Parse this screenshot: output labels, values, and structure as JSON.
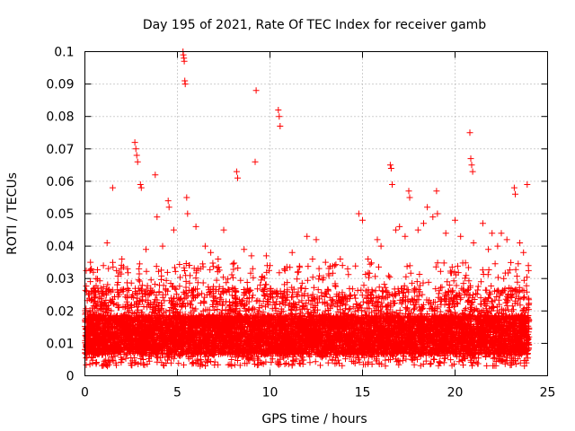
{
  "chart_data": {
    "type": "scatter",
    "title": "Day 195 of 2021, Rate Of TEC Index for receiver gamb",
    "xlabel": "GPS time / hours",
    "ylabel": "ROTI / TECUs",
    "xlim": [
      0,
      25
    ],
    "ylim": [
      0,
      0.1
    ],
    "x_ticks": [
      "0",
      "5",
      "10",
      "15",
      "20",
      "25"
    ],
    "y_ticks": [
      "0",
      "0.01",
      "0.02",
      "0.03",
      "0.04",
      "0.05",
      "0.06",
      "0.07",
      "0.08",
      "0.09",
      "0.1"
    ],
    "grid": true,
    "marker": "+",
    "color": "#ff0000",
    "series": [
      {
        "name": "ROTI",
        "x": [
          5.3,
          5.32,
          5.35,
          5.37,
          5.4,
          5.42,
          9.25,
          10.45,
          10.5,
          10.55,
          2.7,
          2.75,
          2.8,
          2.85,
          20.8,
          20.85,
          20.9,
          20.95,
          3.0,
          3.05,
          8.2,
          8.25,
          9.2,
          4.5,
          4.55,
          5.5,
          5.55,
          16.5,
          16.55,
          16.6,
          17.5,
          17.55,
          19.0,
          19.05,
          23.2,
          23.25,
          1.5,
          0.3,
          0.35,
          3.8,
          3.9,
          12.0,
          12.5,
          14.8,
          15.0,
          18.5,
          21.5,
          22.0,
          7.5,
          6.5,
          1.2,
          9.8,
          11.2,
          13.8,
          15.8,
          17.0,
          18.0,
          20.0,
          22.5,
          23.5,
          23.9,
          0.1,
          0.6,
          1.0,
          2.0,
          2.3,
          3.3,
          4.2,
          4.8,
          6.0,
          6.8,
          7.2,
          8.6,
          9.0,
          10.0,
          10.8,
          11.5,
          12.3,
          13.0,
          13.5,
          14.2,
          15.3,
          16.0,
          16.8,
          17.3,
          18.3,
          18.8,
          19.5,
          20.3,
          21.0,
          21.8,
          22.3,
          22.8,
          23.7
        ],
        "y": [
          0.1,
          0.099,
          0.098,
          0.097,
          0.091,
          0.09,
          0.088,
          0.082,
          0.08,
          0.077,
          0.072,
          0.07,
          0.068,
          0.066,
          0.075,
          0.067,
          0.065,
          0.063,
          0.059,
          0.058,
          0.063,
          0.061,
          0.066,
          0.054,
          0.052,
          0.055,
          0.05,
          0.065,
          0.064,
          0.059,
          0.057,
          0.055,
          0.057,
          0.05,
          0.058,
          0.056,
          0.058,
          0.035,
          0.033,
          0.062,
          0.049,
          0.043,
          0.042,
          0.05,
          0.048,
          0.052,
          0.047,
          0.044,
          0.045,
          0.04,
          0.041,
          0.037,
          0.038,
          0.036,
          0.042,
          0.046,
          0.045,
          0.048,
          0.044,
          0.041,
          0.059,
          0.026,
          0.03,
          0.034,
          0.036,
          0.033,
          0.039,
          0.04,
          0.045,
          0.046,
          0.038,
          0.036,
          0.039,
          0.037,
          0.034,
          0.033,
          0.032,
          0.036,
          0.035,
          0.034,
          0.033,
          0.036,
          0.04,
          0.045,
          0.043,
          0.047,
          0.049,
          0.044,
          0.043,
          0.041,
          0.039,
          0.04,
          0.042,
          0.038
        ]
      }
    ],
    "dense_band": {
      "x_start": 0,
      "x_end": 24,
      "y_low": 0.003,
      "y_high": 0.035,
      "y_core": 0.012,
      "point_count": 9000
    }
  }
}
